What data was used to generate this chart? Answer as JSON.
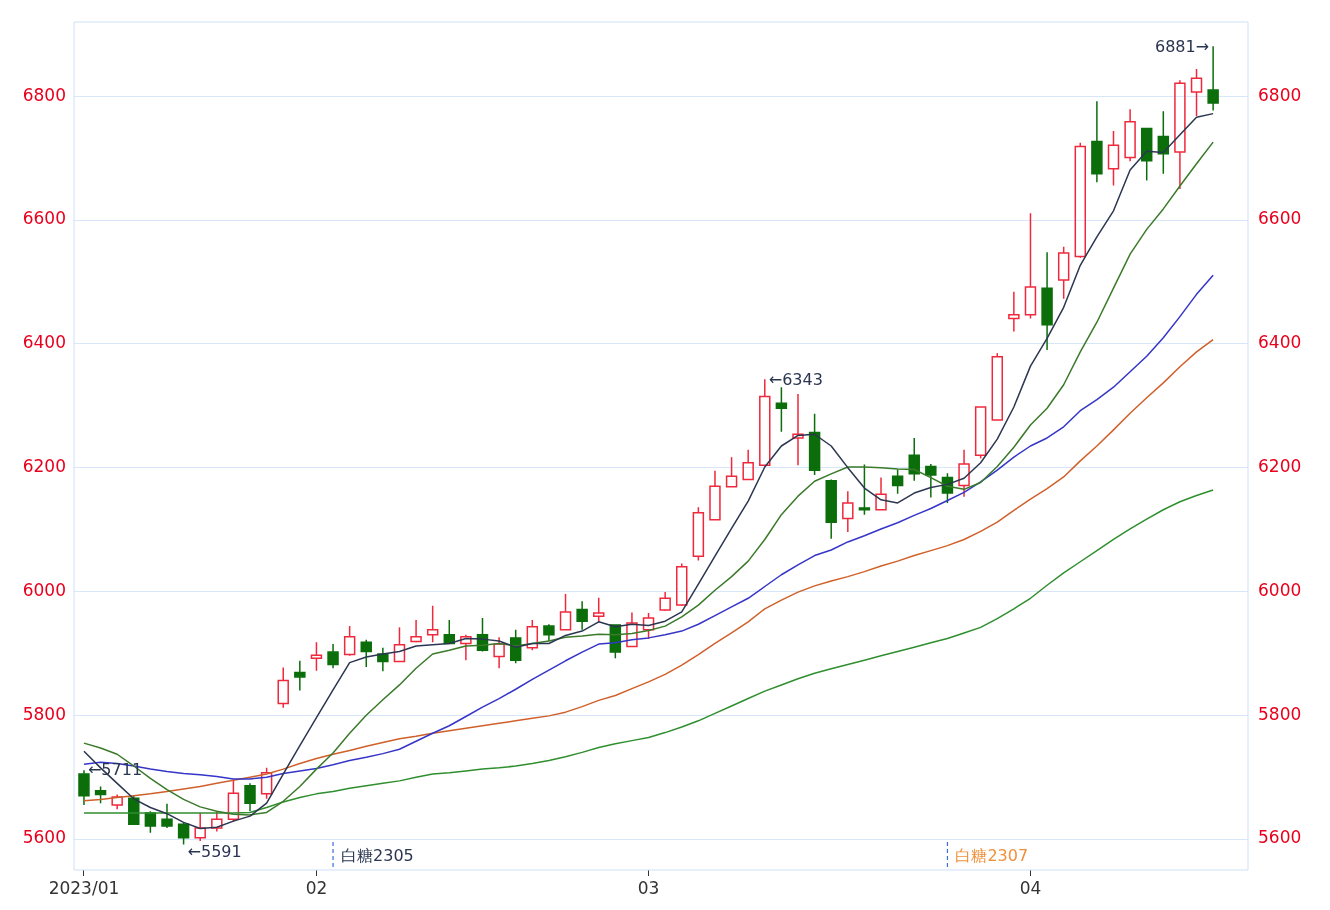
{
  "chart_data": {
    "type": "candlestick",
    "categories": [
      "2023/01",
      null,
      null,
      null,
      null,
      null,
      null,
      null,
      null,
      null,
      null,
      null,
      null,
      null,
      "02",
      null,
      null,
      null,
      null,
      null,
      null,
      null,
      null,
      null,
      null,
      null,
      null,
      null,
      null,
      null,
      null,
      null,
      null,
      null,
      "03",
      null,
      null,
      null,
      null,
      null,
      null,
      null,
      null,
      null,
      null,
      null,
      null,
      null,
      null,
      null,
      null,
      null,
      null,
      null,
      null,
      null,
      null,
      "04",
      null,
      null,
      null,
      null,
      null,
      null,
      null,
      null,
      null,
      null,
      null
    ],
    "ohlc": [
      [
        5705,
        5711,
        5655,
        5670
      ],
      [
        5678,
        5685,
        5658,
        5672
      ],
      [
        5655,
        5672,
        5648,
        5668
      ],
      [
        5666,
        5670,
        5624,
        5624
      ],
      [
        5642,
        5645,
        5610,
        5621
      ],
      [
        5632,
        5657,
        5618,
        5621
      ],
      [
        5624,
        5626,
        5591,
        5602
      ],
      [
        5602,
        5642,
        5597,
        5618
      ],
      [
        5618,
        5645,
        5612,
        5632
      ],
      [
        5632,
        5694,
        5628,
        5674
      ],
      [
        5686,
        5690,
        5645,
        5658
      ],
      [
        5673,
        5715,
        5665,
        5707
      ],
      [
        5819,
        5877,
        5812,
        5856
      ],
      [
        5869,
        5888,
        5840,
        5862
      ],
      [
        5892,
        5918,
        5872,
        5897
      ],
      [
        5902,
        5915,
        5876,
        5882
      ],
      [
        5898,
        5944,
        5896,
        5927
      ],
      [
        5918,
        5922,
        5878,
        5903
      ],
      [
        5899,
        5909,
        5871,
        5887
      ],
      [
        5887,
        5942,
        5887,
        5914
      ],
      [
        5919,
        5954,
        5918,
        5927
      ],
      [
        5930,
        5977,
        5918,
        5938
      ],
      [
        5930,
        5954,
        5916,
        5916
      ],
      [
        5916,
        5930,
        5889,
        5927
      ],
      [
        5930,
        5957,
        5903,
        5905
      ],
      [
        5895,
        5926,
        5876,
        5915
      ],
      [
        5925,
        5938,
        5884,
        5889
      ],
      [
        5909,
        5954,
        5905,
        5943
      ],
      [
        5944,
        5947,
        5920,
        5930
      ],
      [
        5938,
        5996,
        5938,
        5967
      ],
      [
        5971,
        5984,
        5938,
        5952
      ],
      [
        5960,
        5990,
        5950,
        5965
      ],
      [
        5946,
        5946,
        5892,
        5902
      ],
      [
        5911,
        5966,
        5911,
        5949
      ],
      [
        5938,
        5965,
        5923,
        5957
      ],
      [
        5970,
        5999,
        5969,
        5989
      ],
      [
        5978,
        6045,
        5977,
        6040
      ],
      [
        6057,
        6136,
        6050,
        6127
      ],
      [
        6116,
        6195,
        6116,
        6170
      ],
      [
        6169,
        6217,
        6169,
        6186
      ],
      [
        6181,
        6229,
        6181,
        6208
      ],
      [
        6204,
        6343,
        6204,
        6315
      ],
      [
        6304,
        6330,
        6258,
        6296
      ],
      [
        6248,
        6319,
        6204,
        6254
      ],
      [
        6257,
        6287,
        6188,
        6196
      ],
      [
        6179,
        6181,
        6085,
        6112
      ],
      [
        6118,
        6162,
        6096,
        6143
      ],
      [
        6135,
        6205,
        6124,
        6132
      ],
      [
        6132,
        6184,
        6132,
        6157
      ],
      [
        6186,
        6197,
        6158,
        6171
      ],
      [
        6220,
        6248,
        6179,
        6190
      ],
      [
        6202,
        6206,
        6152,
        6188
      ],
      [
        6184,
        6191,
        6143,
        6159
      ],
      [
        6171,
        6229,
        6153,
        6206
      ],
      [
        6220,
        6298,
        6215,
        6298
      ],
      [
        6277,
        6385,
        6277,
        6379
      ],
      [
        6441,
        6484,
        6420,
        6447
      ],
      [
        6447,
        6611,
        6441,
        6492
      ],
      [
        6490,
        6548,
        6390,
        6431
      ],
      [
        6503,
        6557,
        6473,
        6547
      ],
      [
        6541,
        6725,
        6539,
        6719
      ],
      [
        6727,
        6792,
        6661,
        6675
      ],
      [
        6683,
        6744,
        6656,
        6721
      ],
      [
        6701,
        6779,
        6695,
        6759
      ],
      [
        6748,
        6748,
        6664,
        6696
      ],
      [
        6735,
        6776,
        6675,
        6707
      ],
      [
        6710,
        6826,
        6650,
        6821
      ],
      [
        6807,
        6844,
        6768,
        6829
      ],
      [
        6810,
        6881,
        6777,
        6789
      ]
    ],
    "series": [
      {
        "type": "line",
        "color": "#2b3650",
        "values": [
          5742,
          5715,
          5690,
          5665,
          5651,
          5641,
          5627,
          5617,
          5619,
          5629,
          5637,
          5658,
          5705,
          5751,
          5796,
          5841,
          5885,
          5894,
          5899,
          5903,
          5912,
          5914,
          5916,
          5924,
          5923,
          5920,
          5910,
          5916,
          5916,
          5929,
          5936,
          5951,
          5943,
          5947,
          5945,
          5952,
          5967,
          6012,
          6057,
          6102,
          6146,
          6201,
          6235,
          6252,
          6254,
          6235,
          6200,
          6167,
          6148,
          6143,
          6159,
          6168,
          6173,
          6183,
          6208,
          6246,
          6298,
          6364,
          6409,
          6459,
          6527,
          6573,
          6615,
          6681,
          6711,
          6709,
          6738,
          6766,
          6772
        ]
      },
      {
        "type": "line",
        "color": "#3a7a2a",
        "values": [
          5755,
          5747,
          5737,
          5718,
          5698,
          5680,
          5664,
          5652,
          5645,
          5640,
          5639,
          5643,
          5661,
          5685,
          5713,
          5739,
          5771,
          5800,
          5825,
          5849,
          5876,
          5899,
          5905,
          5912,
          5913,
          5916,
          5912,
          5916,
          5920,
          5926,
          5928,
          5931,
          5930,
          5932,
          5937,
          5944,
          5959,
          5978,
          6002,
          6024,
          6049,
          6084,
          6124,
          6154,
          6178,
          6190,
          6201,
          6201,
          6200,
          6198,
          6197,
          6184,
          6170,
          6165,
          6176,
          6202,
          6233,
          6269,
          6296,
          6334,
          6387,
          6435,
          6490,
          6545,
          6585,
          6618,
          6655,
          6691,
          6726
        ]
      },
      {
        "type": "line",
        "color": "#3535c8",
        "values": [
          5721,
          5724,
          5722,
          5718,
          5713,
          5709,
          5706,
          5704,
          5701,
          5697,
          5697,
          5700,
          5706,
          5710,
          5714,
          5720,
          5727,
          5732,
          5738,
          5745,
          5758,
          5771,
          5783,
          5798,
          5813,
          5827,
          5842,
          5858,
          5873,
          5888,
          5902,
          5915,
          5917,
          5922,
          5925,
          5930,
          5936,
          5947,
          5961,
          5975,
          5989,
          6008,
          6027,
          6043,
          6058,
          6067,
          6080,
          6090,
          6101,
          6111,
          6123,
          6134,
          6147,
          6160,
          6177,
          6196,
          6217,
          6235,
          6248,
          6266,
          6292,
          6310,
          6330,
          6355,
          6380,
          6410,
          6444,
          6480,
          6511
        ]
      },
      {
        "type": "line",
        "color": "#d0602a",
        "values": [
          5662,
          5664,
          5667,
          5670,
          5673,
          5677,
          5681,
          5685,
          5690,
          5695,
          5700,
          5705,
          5713,
          5722,
          5730,
          5737,
          5743,
          5750,
          5756,
          5762,
          5766,
          5771,
          5775,
          5779,
          5783,
          5787,
          5791,
          5795,
          5799,
          5805,
          5814,
          5824,
          5832,
          5843,
          5854,
          5866,
          5881,
          5898,
          5916,
          5933,
          5951,
          5972,
          5986,
          5999,
          6009,
          6017,
          6024,
          6032,
          6041,
          6049,
          6058,
          6066,
          6074,
          6084,
          6097,
          6112,
          6131,
          6149,
          6166,
          6185,
          6211,
          6235,
          6261,
          6288,
          6313,
          6337,
          6363,
          6387,
          6407
        ]
      },
      {
        "type": "line",
        "color": "#2f8f2f",
        "values": [
          5642,
          5642,
          5642,
          5642,
          5642,
          5642,
          5642,
          5642,
          5642,
          5642,
          5643,
          5651,
          5660,
          5667,
          5673,
          5677,
          5682,
          5686,
          5690,
          5694,
          5700,
          5705,
          5707,
          5710,
          5713,
          5715,
          5718,
          5722,
          5727,
          5733,
          5740,
          5748,
          5754,
          5759,
          5764,
          5772,
          5781,
          5791,
          5803,
          5815,
          5827,
          5839,
          5849,
          5859,
          5868,
          5875,
          5882,
          5889,
          5896,
          5903,
          5910,
          5917,
          5924,
          5933,
          5942,
          5956,
          5972,
          5989,
          6010,
          6030,
          6048,
          6066,
          6084,
          6101,
          6117,
          6132,
          6145,
          6155,
          6164
        ]
      }
    ],
    "ylim": [
      5550,
      6920
    ],
    "yticks": [
      5600,
      5800,
      6000,
      6200,
      6400,
      6600,
      6800
    ],
    "y2lim": [
      5550,
      6920
    ],
    "y2ticks": [
      5600,
      5800,
      6000,
      6200,
      6400,
      6600,
      6800
    ],
    "grid": "y",
    "legend": false,
    "annotations": [
      "←5711",
      "←5591",
      "←6343",
      "6881→",
      "白糖2305",
      "白糖2307"
    ]
  }
}
